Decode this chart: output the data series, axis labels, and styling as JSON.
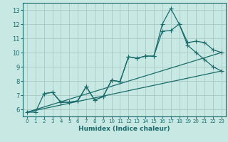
{
  "title": "",
  "xlabel": "Humidex (Indice chaleur)",
  "ylabel": "",
  "bg_color": "#c8e8e4",
  "plot_bg_color": "#c8e8e4",
  "grid_color": "#a8c8c4",
  "line_color": "#1a6b6b",
  "xlim": [
    -0.5,
    23.5
  ],
  "ylim": [
    5.5,
    13.5
  ],
  "xticks": [
    0,
    1,
    2,
    3,
    4,
    5,
    6,
    7,
    8,
    9,
    10,
    11,
    12,
    13,
    14,
    15,
    16,
    17,
    18,
    19,
    20,
    21,
    22,
    23
  ],
  "yticks": [
    6,
    7,
    8,
    9,
    10,
    11,
    12,
    13
  ],
  "line1_x": [
    0,
    1,
    2,
    3,
    4,
    5,
    6,
    7,
    8,
    9,
    10,
    11,
    12,
    13,
    14,
    15,
    16,
    17,
    18,
    19,
    20,
    21,
    22,
    23
  ],
  "line1_y": [
    5.8,
    5.8,
    7.1,
    7.2,
    6.5,
    6.5,
    6.6,
    7.6,
    6.65,
    6.9,
    8.05,
    7.95,
    9.7,
    9.6,
    9.75,
    9.75,
    11.5,
    11.55,
    12.0,
    10.7,
    10.8,
    10.7,
    10.2,
    10.0
  ],
  "line2_x": [
    2,
    3,
    4,
    5,
    6,
    7,
    8,
    9,
    10,
    11,
    12,
    13,
    14,
    15,
    16,
    17,
    18,
    19,
    20,
    21,
    22,
    23
  ],
  "line2_y": [
    7.1,
    7.2,
    6.5,
    6.5,
    6.6,
    7.6,
    6.65,
    6.9,
    8.05,
    7.95,
    9.7,
    9.6,
    9.75,
    9.75,
    12.0,
    13.1,
    12.0,
    10.5,
    10.0,
    9.5,
    9.0,
    8.7
  ],
  "trend1_x": [
    0,
    23
  ],
  "trend1_y": [
    5.8,
    10.0
  ],
  "trend2_x": [
    0,
    23
  ],
  "trend2_y": [
    5.8,
    8.7
  ],
  "marker": "+",
  "markersize": 4,
  "xlabel_fontsize": 6.5,
  "tick_fontsize_x": 5.0,
  "tick_fontsize_y": 6.0
}
